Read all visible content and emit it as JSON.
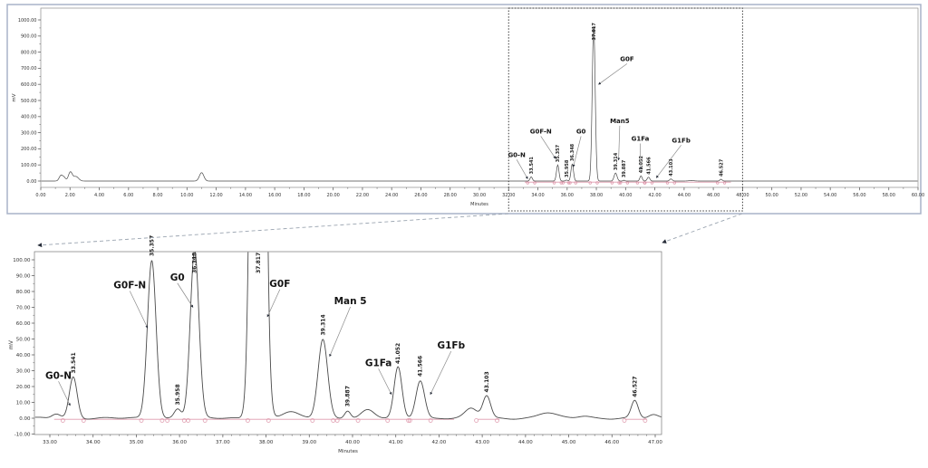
{
  "colors": {
    "trace": "#4a4a4a",
    "integration": "#dc8fa4",
    "zoom_box": "#3a3a3a",
    "connector": "#9aa4b0",
    "arrow_head": "#262c38",
    "panel_border": "#a9b3c9",
    "axis": "#6b6b6b",
    "annotation_text": "#141414",
    "rt_label_text": "#1c1c1c"
  },
  "chart_data": [
    {
      "role": "full",
      "type": "line",
      "x_axis": {
        "title": "Minutes",
        "min": 0,
        "max": 60,
        "major_step": 2,
        "minor_step": 1,
        "tick_labels": [
          "0.00",
          "2.00",
          "4.00",
          "6.00",
          "8.00",
          "10.00",
          "12.00",
          "14.00",
          "16.00",
          "18.00",
          "20.00",
          "22.00",
          "24.00",
          "26.00",
          "28.00",
          "30.00",
          "32.00",
          "34.00",
          "36.00",
          "38.00",
          "40.00",
          "42.00",
          "44.00",
          "46.00",
          "48.00",
          "50.00",
          "52.00",
          "54.00",
          "56.00",
          "58.00",
          "60.00"
        ]
      },
      "y_axis": {
        "title": "mV",
        "min": 0,
        "max": 1000,
        "major_step": 100,
        "minor_step": 50,
        "tick_labels": [
          "1000.00",
          "900.00",
          "800.00",
          "700.00",
          "600.00",
          "500.00",
          "400.00",
          "300.00",
          "200.00",
          "100.00",
          "0.00"
        ]
      },
      "zoom_region": {
        "from": 32.0,
        "to": 48.0
      },
      "integration_segments": [
        [
          33.1,
          47.2
        ]
      ],
      "peaks": [
        {
          "rt": 1.38,
          "mv": 35,
          "sigma": 0.12
        },
        {
          "rt": 1.6,
          "mv": 20,
          "sigma": 0.1
        },
        {
          "rt": 2.02,
          "mv": 55,
          "sigma": 0.13
        },
        {
          "rt": 2.4,
          "mv": 28,
          "sigma": 0.18
        },
        {
          "rt": 11.0,
          "mv": 52,
          "sigma": 0.15
        },
        {
          "rt": 33.541,
          "mv": 26,
          "sigma": 0.08,
          "rt_label": "33.541"
        },
        {
          "rt": 35.357,
          "mv": 100,
          "sigma": 0.085,
          "rt_label": "35.357"
        },
        {
          "rt": 35.958,
          "mv": 6,
          "sigma": 0.07,
          "rt_label": "35.958"
        },
        {
          "rt": 36.348,
          "mv": 106,
          "sigma": 0.085,
          "rt_label": "36.348"
        },
        {
          "rt": 37.817,
          "mv": 975,
          "sigma": 0.1,
          "rt_label": "37.817",
          "label_dy": 18
        },
        {
          "rt": 39.314,
          "mv": 50,
          "sigma": 0.1,
          "rt_label": "39.314"
        },
        {
          "rt": 39.887,
          "mv": 5,
          "sigma": 0.06,
          "rt_label": "39.887"
        },
        {
          "rt": 41.052,
          "mv": 32,
          "sigma": 0.08,
          "rt_label": "41.052"
        },
        {
          "rt": 41.566,
          "mv": 24,
          "sigma": 0.09,
          "rt_label": "41.566"
        },
        {
          "rt": 43.103,
          "mv": 13,
          "sigma": 0.09,
          "rt_label": "43.103"
        },
        {
          "rt": 44.5,
          "mv": 3,
          "sigma": 0.18
        },
        {
          "rt": 46.527,
          "mv": 11,
          "sigma": 0.08,
          "rt_label": "46.527"
        }
      ],
      "annotations": [
        {
          "text": "G0-N",
          "at": [
            32.55,
            150
          ],
          "to": [
            33.3,
            14
          ]
        },
        {
          "text": "G0F-N",
          "at": [
            34.2,
            295
          ],
          "to": [
            35.2,
            140
          ]
        },
        {
          "text": "G0",
          "at": [
            36.95,
            295
          ],
          "to": [
            36.42,
            88
          ]
        },
        {
          "text": "G0F",
          "at": [
            40.1,
            745
          ],
          "to": [
            38.15,
            600
          ]
        },
        {
          "text": "Man5",
          "at": [
            39.6,
            360
          ],
          "to": [
            39.52,
            130
          ]
        },
        {
          "text": "G1Fa",
          "at": [
            41.0,
            250
          ],
          "to": [
            41.03,
            72
          ]
        },
        {
          "text": "G1Fb",
          "at": [
            43.8,
            240
          ],
          "to": [
            42.1,
            20
          ]
        }
      ]
    },
    {
      "role": "zoom",
      "type": "line",
      "x_axis": {
        "title": "Minutes",
        "min": 33,
        "max": 47,
        "major_step": 1,
        "minor_step": 0.2,
        "tick_labels": [
          "33.00",
          "34.00",
          "35.00",
          "36.00",
          "37.00",
          "38.00",
          "39.00",
          "40.00",
          "41.00",
          "42.00",
          "43.00",
          "44.00",
          "45.00",
          "46.00",
          "47.00"
        ]
      },
      "y_axis": {
        "title": "mV",
        "min": -10,
        "max": 100,
        "major_step": 10,
        "minor_step": 5,
        "tick_labels": [
          "100.00",
          "90.00",
          "80.00",
          "70.00",
          "60.00",
          "50.00",
          "40.00",
          "30.00",
          "20.00",
          "10.00",
          "0.00",
          "-10.00"
        ]
      },
      "integration_segments": [
        [
          33.1,
          42.35
        ],
        [
          42.9,
          43.4
        ],
        [
          46.3,
          46.8
        ]
      ],
      "peaks": [
        {
          "rt": 33.15,
          "mv": 3,
          "sigma": 0.1
        },
        {
          "rt": 33.541,
          "mv": 26,
          "sigma": 0.09,
          "rt_label": "33.541"
        },
        {
          "rt": 35.357,
          "mv": 100,
          "sigma": 0.1,
          "rt_label": "35.357"
        },
        {
          "rt": 35.958,
          "mv": 6,
          "sigma": 0.08,
          "rt_label": "35.958"
        },
        {
          "rt": 36.348,
          "mv": 106,
          "sigma": 0.1,
          "rt_label": "36.348"
        },
        {
          "rt": 37.817,
          "mv": 975,
          "sigma": 0.11,
          "rt_label": "37.817"
        },
        {
          "rt": 38.55,
          "mv": 4,
          "sigma": 0.18
        },
        {
          "rt": 39.314,
          "mv": 50,
          "sigma": 0.11,
          "rt_label": "39.314"
        },
        {
          "rt": 39.887,
          "mv": 5,
          "sigma": 0.07,
          "rt_label": "39.887"
        },
        {
          "rt": 40.35,
          "mv": 5,
          "sigma": 0.15
        },
        {
          "rt": 41.052,
          "mv": 32,
          "sigma": 0.09,
          "rt_label": "41.052"
        },
        {
          "rt": 41.566,
          "mv": 24,
          "sigma": 0.1,
          "rt_label": "41.566"
        },
        {
          "rt": 42.75,
          "mv": 6,
          "sigma": 0.14
        },
        {
          "rt": 43.103,
          "mv": 14,
          "sigma": 0.09,
          "rt_label": "43.103"
        },
        {
          "rt": 44.5,
          "mv": 3.5,
          "sigma": 0.2
        },
        {
          "rt": 45.35,
          "mv": 1.5,
          "sigma": 0.15
        },
        {
          "rt": 46.527,
          "mv": 11,
          "sigma": 0.08,
          "rt_label": "46.527"
        },
        {
          "rt": 46.95,
          "mv": 2,
          "sigma": 0.1
        }
      ],
      "annotations": [
        {
          "text": "G0-N",
          "at": [
            33.2,
            25
          ],
          "to": [
            33.47,
            8
          ]
        },
        {
          "text": "G0F-N",
          "at": [
            34.85,
            82
          ],
          "to": [
            35.26,
            57
          ]
        },
        {
          "text": "G0",
          "at": [
            35.95,
            87
          ],
          "to": [
            36.31,
            70
          ]
        },
        {
          "text": "G0F",
          "at": [
            38.32,
            83
          ],
          "to": [
            38.03,
            64
          ]
        },
        {
          "text": "Man 5",
          "at": [
            39.95,
            72
          ],
          "to": [
            39.47,
            39
          ]
        },
        {
          "text": "G1Fa",
          "at": [
            40.6,
            33
          ],
          "to": [
            40.9,
            15
          ]
        },
        {
          "text": "G1Fb",
          "at": [
            42.28,
            44
          ],
          "to": [
            41.8,
            15
          ]
        }
      ]
    }
  ]
}
